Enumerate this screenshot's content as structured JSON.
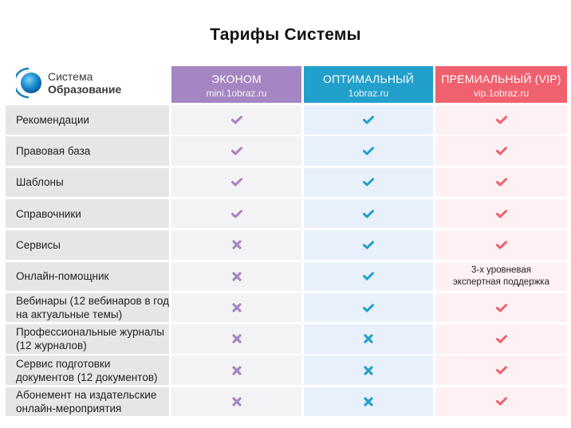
{
  "title": "Тарифы Системы",
  "logo": {
    "line1": "Система",
    "line2": "Образование"
  },
  "colors": {
    "econom": "#a685c3",
    "optimal": "#22a0cc",
    "premium": "#f0616f",
    "feature_bg": "#e5e6e8",
    "econom_cell": "#f3f3f6",
    "optimal_cell": "#e8f1fb",
    "premium_cell": "#fff1f3"
  },
  "plans": [
    {
      "name": "ЭКОНОМ",
      "site": "mini.1obraz.ru"
    },
    {
      "name": "ОПТИМАЛЬНЫЙ",
      "site": "1obraz.ru"
    },
    {
      "name": "ПРЕМИАЛЬНЫЙ (VIP)",
      "site": "vip.1obraz.ru"
    }
  ],
  "rows": [
    {
      "feature": "Рекомендации",
      "econom": "check",
      "optimal": "check",
      "premium": "check"
    },
    {
      "feature": "Правовая база",
      "econom": "check",
      "optimal": "check",
      "premium": "check"
    },
    {
      "feature": "Шаблоны",
      "econom": "check",
      "optimal": "check",
      "premium": "check"
    },
    {
      "feature": "Справочники",
      "econom": "check",
      "optimal": "check",
      "premium": "check"
    },
    {
      "feature": "Сервисы",
      "econom": "cross",
      "optimal": "check",
      "premium": "check"
    },
    {
      "feature": "Онлайн-помощник",
      "econom": "cross",
      "optimal": "check",
      "premium": "3-х уровневая экспертная поддержка"
    },
    {
      "feature": "Вебинары (12 вебинаров в год на актуальные темы)",
      "econom": "cross",
      "optimal": "check",
      "premium": "check"
    },
    {
      "feature": "Профессиональные журналы (12 журналов)",
      "econom": "cross",
      "optimal": "cross",
      "premium": "check"
    },
    {
      "feature": "Сервис подготовки документов (12 документов)",
      "econom": "cross",
      "optimal": "cross",
      "premium": "check"
    },
    {
      "feature": "Абонемент на издательские онлайн-мероприятия",
      "econom": "cross",
      "optimal": "cross",
      "premium": "check"
    }
  ]
}
